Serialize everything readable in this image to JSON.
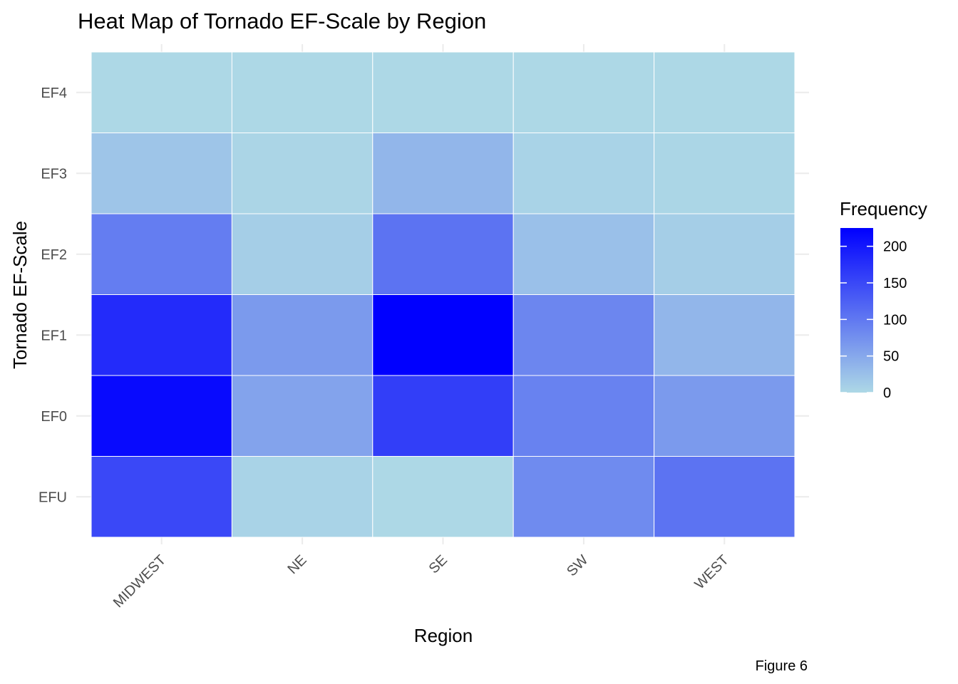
{
  "chart_data": {
    "type": "heatmap",
    "title": "Heat Map of Tornado EF-Scale by Region",
    "xlabel": "Region",
    "ylabel": "Tornado EF-Scale",
    "x_categories": [
      "MIDWEST",
      "NE",
      "SE",
      "SW",
      "WEST"
    ],
    "y_categories": [
      "EFU",
      "EF0",
      "EF1",
      "EF2",
      "EF3",
      "EF4"
    ],
    "values": [
      [
        150,
        5,
        0,
        80,
        105
      ],
      [
        215,
        55,
        160,
        90,
        65
      ],
      [
        180,
        65,
        225,
        85,
        35
      ],
      [
        95,
        10,
        105,
        25,
        10
      ],
      [
        20,
        3,
        35,
        5,
        2
      ],
      [
        0,
        0,
        0,
        0,
        0
      ]
    ],
    "legend": {
      "title": "Frequency",
      "ticks": [
        0,
        50,
        100,
        150,
        200
      ],
      "range": [
        0,
        225
      ],
      "low_color": "#add8e6",
      "high_color": "#0000ff",
      "placement": "right"
    },
    "caption": "Figure 6",
    "grid": true,
    "colors": {
      "gridline": "#ebebeb",
      "tile_border": "#ffffff"
    }
  }
}
